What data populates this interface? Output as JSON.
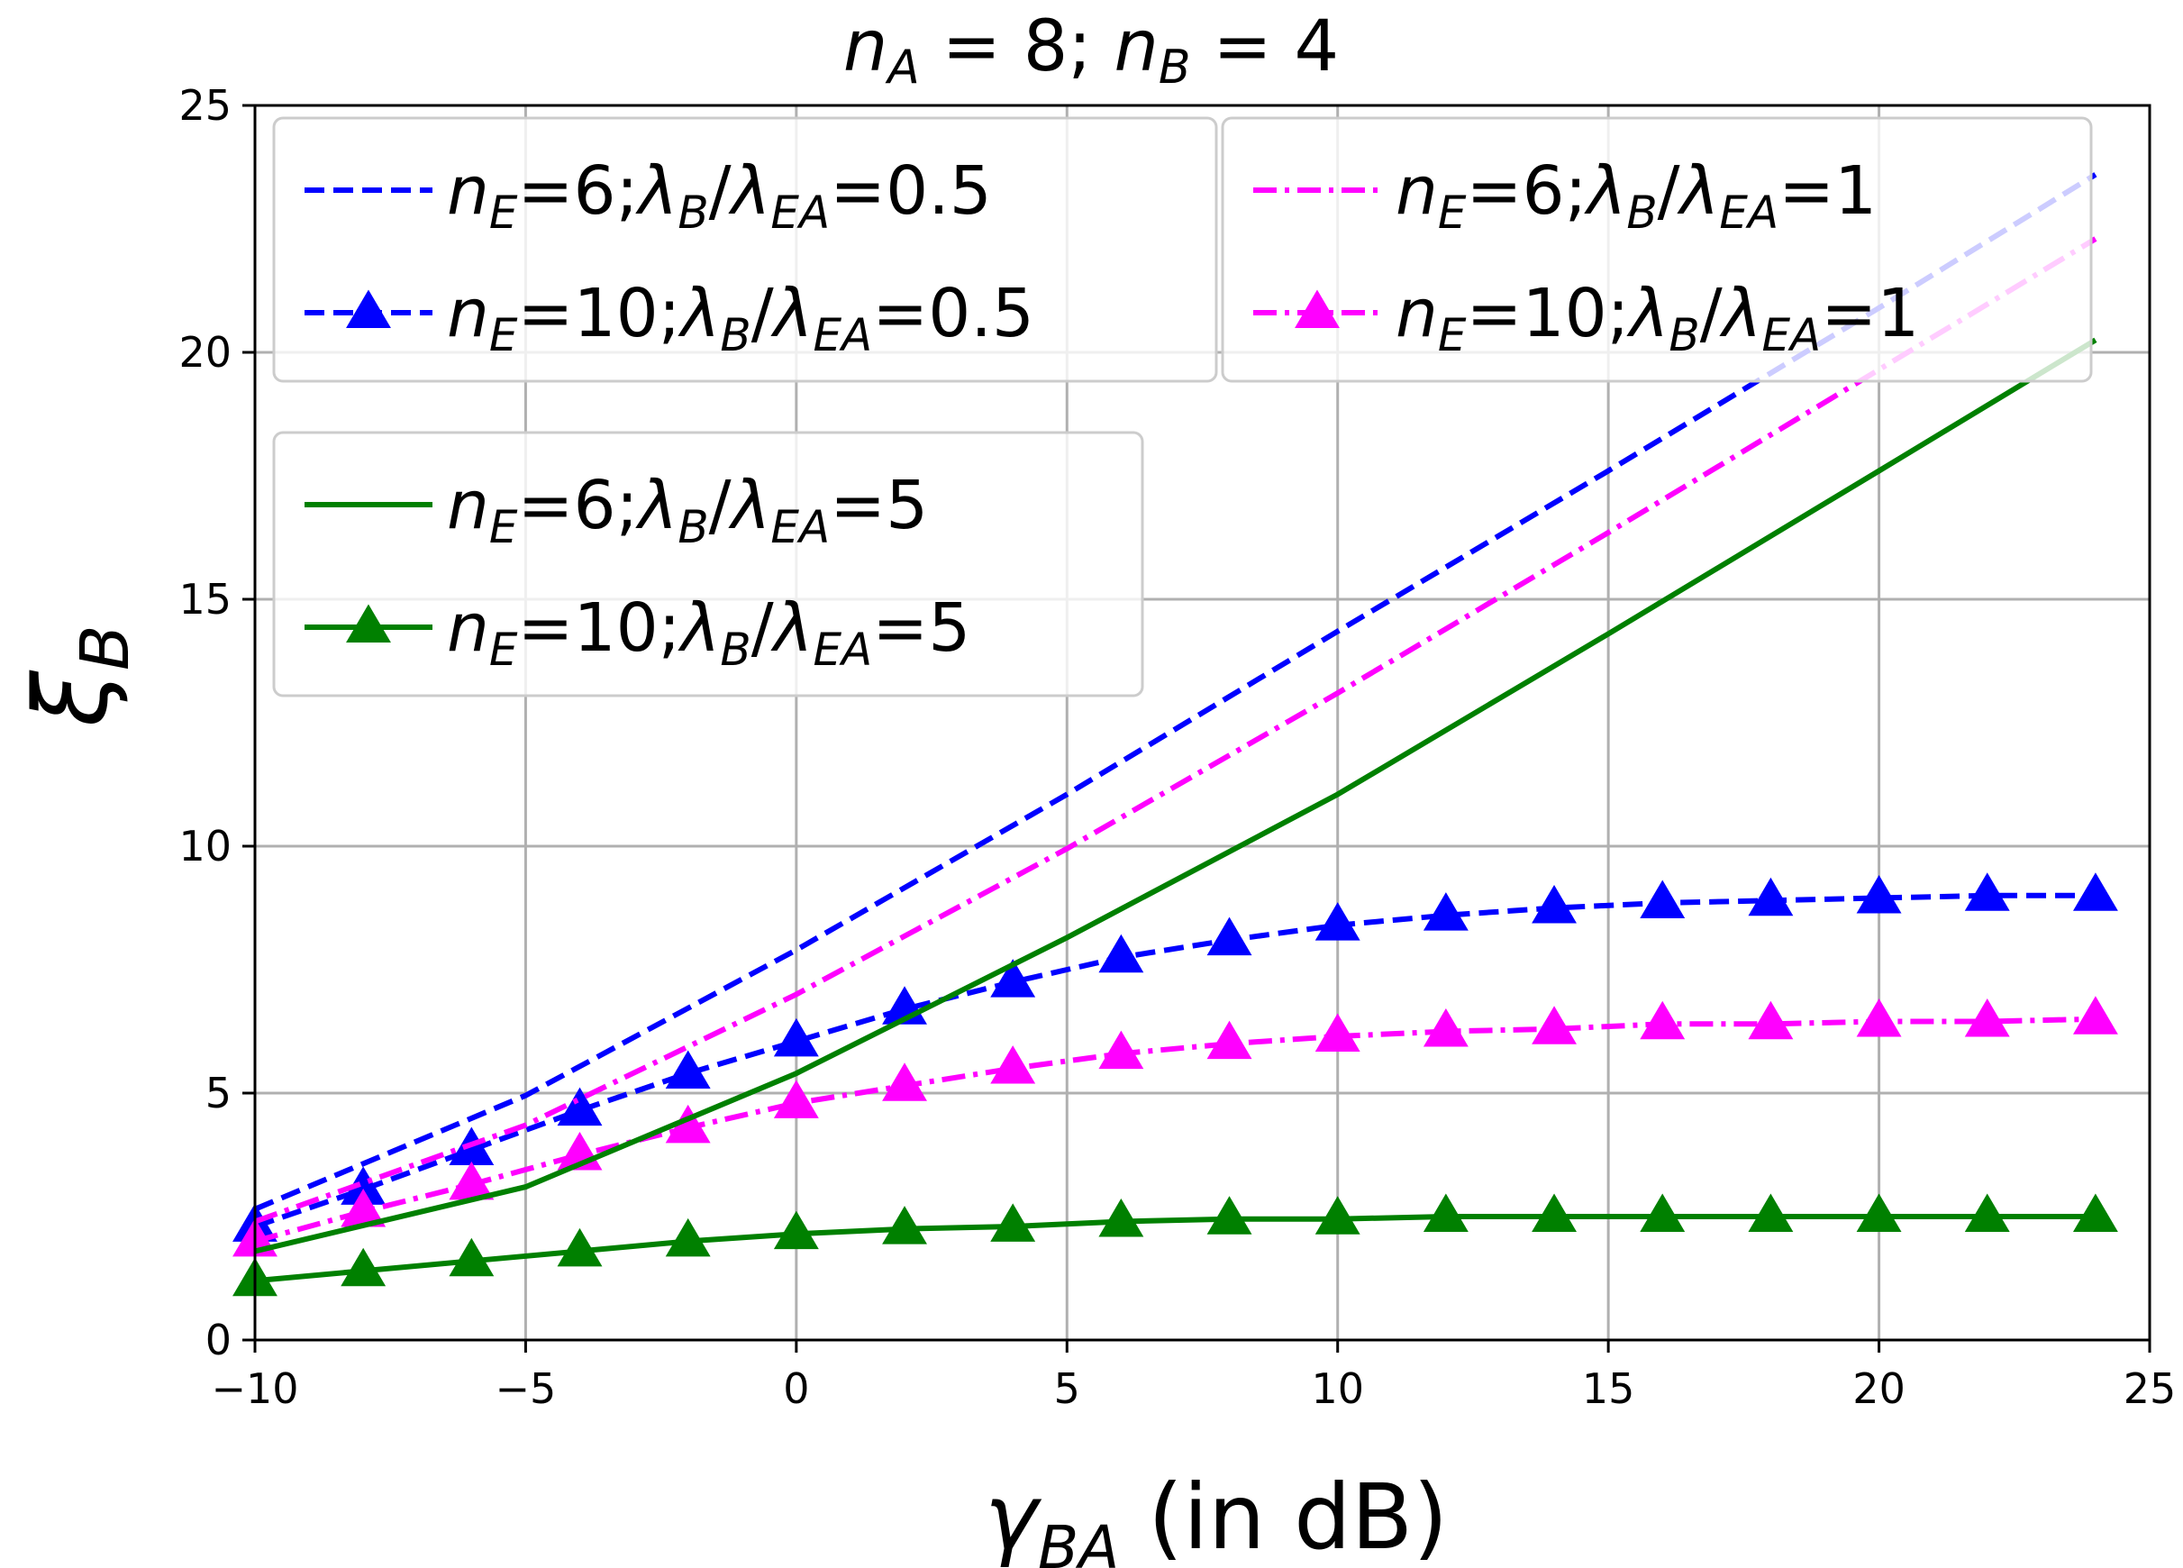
{
  "chart_data": {
    "type": "line",
    "title": "n_A = 8; n_B = 4",
    "title_parts": {
      "n": "n",
      "sub_a": "A",
      "eq_a": " = 8; ",
      "sub_b": "B",
      "eq_b": " = 4"
    },
    "xlabel": "γBA (in dB)",
    "xlabel_parts": {
      "gamma": "γ",
      "sub": "BA",
      "rest": " (in dB)"
    },
    "ylabel": "ξB",
    "ylabel_parts": {
      "xi": "ξ",
      "sub": "B"
    },
    "xlim": [
      -10,
      25
    ],
    "ylim": [
      0,
      25
    ],
    "xticks": [
      -10,
      -5,
      0,
      5,
      10,
      15,
      20,
      25
    ],
    "xtick_labels": [
      "−10",
      "−5",
      "0",
      "5",
      "10",
      "15",
      "20",
      "25"
    ],
    "yticks": [
      0,
      5,
      10,
      15,
      20,
      25
    ],
    "ytick_labels": [
      "0",
      "5",
      "10",
      "15",
      "20",
      "25"
    ],
    "grid": true,
    "x_lines": [
      -10,
      -5,
      0,
      5,
      10,
      15,
      20,
      24
    ],
    "x_markers": [
      -10,
      -8,
      -6,
      -4,
      -2,
      0,
      2,
      4,
      6,
      8,
      10,
      12,
      14,
      16,
      18,
      20,
      22,
      24
    ],
    "series": [
      {
        "name": "nE=6;λB/λEA=0.5",
        "legend": {
          "ne": "6",
          "ratio": "0.5"
        },
        "color": "#0000ff",
        "dash": "dashed",
        "marker": "none",
        "x": [
          -10,
          -5,
          0,
          5,
          10,
          15,
          20,
          24
        ],
        "values": [
          2.65,
          4.95,
          7.9,
          11.05,
          14.35,
          17.6,
          20.9,
          23.6
        ]
      },
      {
        "name": "nE=10;λB/λEA=0.5",
        "legend": {
          "ne": "10",
          "ratio": "0.5"
        },
        "color": "#0000ff",
        "dash": "dashed",
        "marker": "triangle",
        "x": [
          -10,
          -8,
          -6,
          -4,
          -2,
          0,
          2,
          4,
          6,
          8,
          10,
          12,
          14,
          16,
          18,
          20,
          22,
          24
        ],
        "values": [
          2.3,
          3.05,
          3.85,
          4.65,
          5.4,
          6.05,
          6.7,
          7.25,
          7.75,
          8.1,
          8.4,
          8.6,
          8.75,
          8.85,
          8.9,
          8.95,
          9.0,
          9.0
        ]
      },
      {
        "name": "nE=6;λB/λEA=1",
        "legend": {
          "ne": "6",
          "ratio": "1"
        },
        "color": "#ff00ff",
        "dash": "dashdot",
        "marker": "none",
        "x": [
          -10,
          -5,
          0,
          5,
          10,
          15,
          20,
          24
        ],
        "values": [
          2.4,
          4.35,
          7.0,
          9.95,
          13.1,
          16.35,
          19.65,
          22.3
        ]
      },
      {
        "name": "nE=10;λB/λEA=1",
        "legend": {
          "ne": "10",
          "ratio": "1"
        },
        "color": "#ff00ff",
        "dash": "dashdot",
        "marker": "triangle",
        "x": [
          -10,
          -8,
          -6,
          -4,
          -2,
          0,
          2,
          4,
          6,
          8,
          10,
          12,
          14,
          16,
          18,
          20,
          22,
          24
        ],
        "values": [
          2.0,
          2.6,
          3.15,
          3.75,
          4.3,
          4.8,
          5.15,
          5.5,
          5.8,
          6.0,
          6.15,
          6.25,
          6.3,
          6.4,
          6.4,
          6.45,
          6.45,
          6.5
        ]
      },
      {
        "name": "nE=6;λB/λEA=5",
        "legend": {
          "ne": "6",
          "ratio": "5"
        },
        "color": "#008000",
        "dash": "solid",
        "marker": "none",
        "x": [
          -10,
          -5,
          0,
          5,
          10,
          15,
          20,
          24
        ],
        "values": [
          1.8,
          3.1,
          5.4,
          8.15,
          11.05,
          14.3,
          17.6,
          20.25
        ]
      },
      {
        "name": "nE=10;λB/λEA=5",
        "legend": {
          "ne": "10",
          "ratio": "5"
        },
        "color": "#008000",
        "dash": "solid",
        "marker": "triangle",
        "x": [
          -10,
          -8,
          -6,
          -4,
          -2,
          0,
          2,
          4,
          6,
          8,
          10,
          12,
          14,
          16,
          18,
          20,
          22,
          24
        ],
        "values": [
          1.2,
          1.4,
          1.6,
          1.8,
          2.0,
          2.15,
          2.25,
          2.3,
          2.4,
          2.45,
          2.45,
          2.5,
          2.5,
          2.5,
          2.5,
          2.5,
          2.5,
          2.5
        ]
      }
    ],
    "legend_labels": {
      "n": "n",
      "sub_e": "E",
      "eq": "=",
      "semi": ";",
      "lambda": "λ",
      "sub_b": "B",
      "slash": "/",
      "sub_ea": "EA"
    },
    "legend_groups": [
      {
        "placement": "top-left",
        "series": [
          0,
          1
        ]
      },
      {
        "placement": "top-center",
        "series": [
          2,
          3
        ]
      },
      {
        "placement": "upper-left",
        "series": [
          4,
          5
        ]
      }
    ]
  }
}
